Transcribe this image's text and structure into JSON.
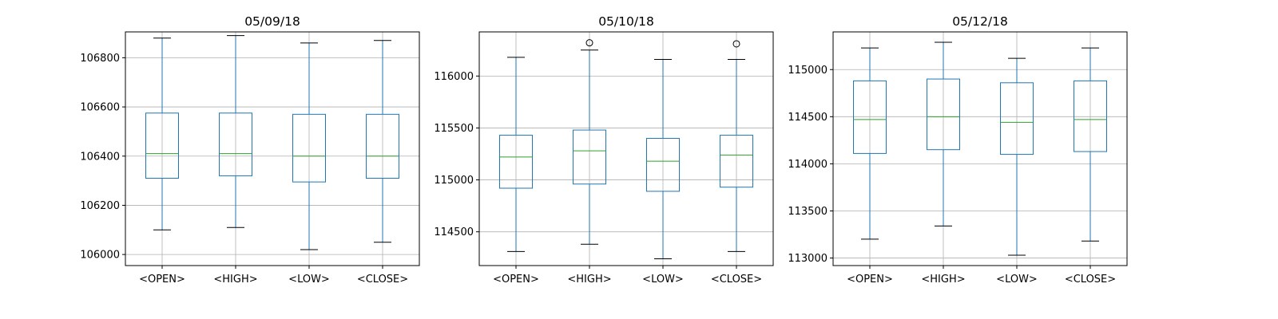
{
  "chart_data": [
    {
      "type": "box",
      "title": "05/09/18",
      "categories": [
        "<OPEN>",
        "<HIGH>",
        "<LOW>",
        "<CLOSE>"
      ],
      "ylim": [
        105955,
        106905
      ],
      "yticks": [
        106000,
        106200,
        106400,
        106600,
        106800
      ],
      "ytick_labels": [
        "106000",
        "106200",
        "106400",
        "106600",
        "106800"
      ],
      "grid": true,
      "boxes": [
        {
          "whisker_low": 106100,
          "q1": 106310,
          "median": 106410,
          "q3": 106575,
          "whisker_high": 106880,
          "outliers": []
        },
        {
          "whisker_low": 106110,
          "q1": 106320,
          "median": 106410,
          "q3": 106575,
          "whisker_high": 106890,
          "outliers": []
        },
        {
          "whisker_low": 106020,
          "q1": 106295,
          "median": 106400,
          "q3": 106570,
          "whisker_high": 106860,
          "outliers": []
        },
        {
          "whisker_low": 106050,
          "q1": 106310,
          "median": 106400,
          "q3": 106570,
          "whisker_high": 106870,
          "outliers": []
        }
      ]
    },
    {
      "type": "box",
      "title": "05/10/18",
      "categories": [
        "<OPEN>",
        "<HIGH>",
        "<LOW>",
        "<CLOSE>"
      ],
      "ylim": [
        114175,
        116425
      ],
      "yticks": [
        114500,
        115000,
        115500,
        116000
      ],
      "ytick_labels": [
        "114500",
        "115000",
        "115500",
        "116000"
      ],
      "grid": true,
      "boxes": [
        {
          "whisker_low": 114310,
          "q1": 114920,
          "median": 115220,
          "q3": 115430,
          "whisker_high": 116180,
          "outliers": []
        },
        {
          "whisker_low": 114380,
          "q1": 114960,
          "median": 115280,
          "q3": 115480,
          "whisker_high": 116250,
          "outliers": [
            116320
          ]
        },
        {
          "whisker_low": 114240,
          "q1": 114890,
          "median": 115180,
          "q3": 115400,
          "whisker_high": 116160,
          "outliers": []
        },
        {
          "whisker_low": 114310,
          "q1": 114930,
          "median": 115240,
          "q3": 115430,
          "whisker_high": 116160,
          "outliers": [
            116310
          ]
        }
      ]
    },
    {
      "type": "box",
      "title": "05/12/18",
      "categories": [
        "<OPEN>",
        "<HIGH>",
        "<LOW>",
        "<CLOSE>"
      ],
      "ylim": [
        112920,
        115400
      ],
      "yticks": [
        113000,
        113500,
        114000,
        114500,
        115000
      ],
      "ytick_labels": [
        "113000",
        "113500",
        "114000",
        "114500",
        "115000"
      ],
      "grid": true,
      "boxes": [
        {
          "whisker_low": 113200,
          "q1": 114110,
          "median": 114470,
          "q3": 114880,
          "whisker_high": 115230,
          "outliers": []
        },
        {
          "whisker_low": 113340,
          "q1": 114150,
          "median": 114500,
          "q3": 114900,
          "whisker_high": 115290,
          "outliers": []
        },
        {
          "whisker_low": 113030,
          "q1": 114100,
          "median": 114440,
          "q3": 114860,
          "whisker_high": 115120,
          "outliers": []
        },
        {
          "whisker_low": 113180,
          "q1": 114130,
          "median": 114470,
          "q3": 114880,
          "whisker_high": 115230,
          "outliers": []
        }
      ]
    }
  ],
  "colors": {
    "box": "#1f77b4",
    "median": "#2ca02c",
    "whisker_cap": "#000000",
    "grid": "#b0b0b0",
    "axes": "#000000",
    "outlier": "#000000"
  }
}
